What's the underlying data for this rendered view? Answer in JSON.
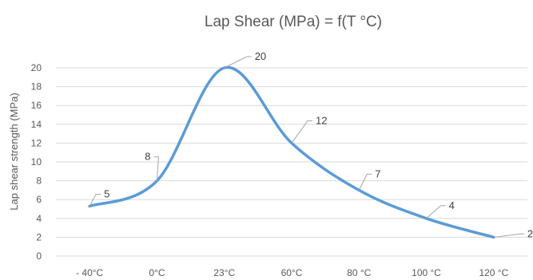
{
  "chart_data": {
    "type": "line",
    "title": "Lap Shear (MPa) = f(T °C)",
    "xlabel": "",
    "ylabel": "Lap shear strength (MPa)",
    "ylim": [
      0,
      20
    ],
    "yticks": [
      0,
      2,
      4,
      6,
      8,
      10,
      12,
      14,
      16,
      18,
      20
    ],
    "categories": [
      "- 40°C",
      "0°C",
      "23°C",
      "60°C",
      "80 °C",
      "100 °C",
      "120 °C"
    ],
    "series": [
      {
        "values": [
          5.3,
          8,
          20,
          12,
          7,
          4,
          2
        ]
      }
    ],
    "data_labels": [
      "5",
      "8",
      "20",
      "12",
      "7",
      "4",
      "2"
    ],
    "grid": true,
    "legend": "none",
    "series_color": "#5b9bd5",
    "smooth": true
  }
}
